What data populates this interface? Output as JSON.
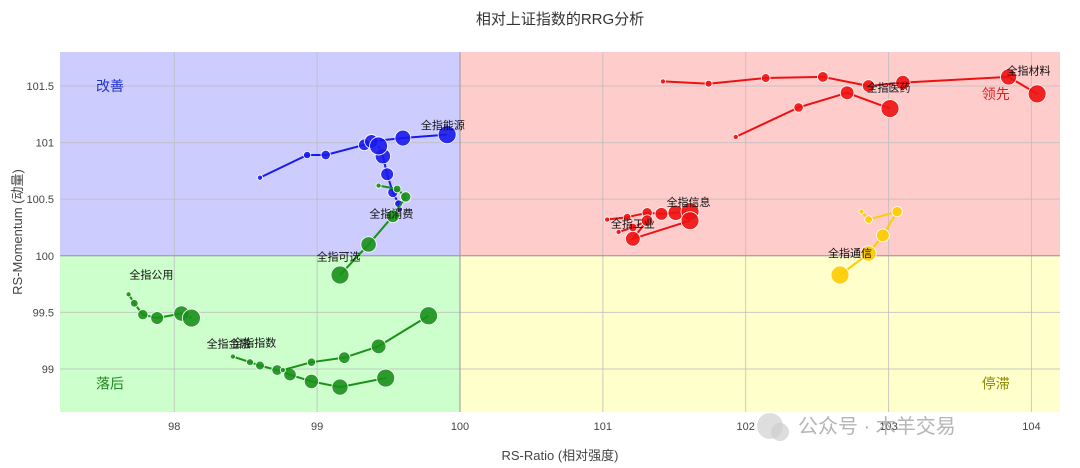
{
  "chart_data": {
    "type": "scatter",
    "title": "相对上证指数的RRG分析",
    "xlabel": "RS-Ratio (相对强度)",
    "ylabel": "RS-Momentum (动量)",
    "xlim": [
      97.2,
      104.2
    ],
    "ylim": [
      98.62,
      101.8
    ],
    "xticks": [
      98,
      99,
      100,
      101,
      102,
      103,
      104
    ],
    "yticks": [
      99,
      99.5,
      100,
      100.5,
      101,
      101.5
    ],
    "xtick_labels": [
      "98",
      "99",
      "100",
      "101",
      "102",
      "103",
      "104"
    ],
    "ytick_labels": [
      "99",
      "99.5",
      "100",
      "100.5",
      "101",
      "101.5"
    ],
    "grid": true,
    "quadrants": [
      {
        "name": "改善",
        "x": [
          97.2,
          100
        ],
        "y": [
          100,
          101.8
        ],
        "fill": "#ccccff",
        "text_color": "#2233cc"
      },
      {
        "name": "领先",
        "x": [
          100,
          104.2
        ],
        "y": [
          100,
          101.8
        ],
        "fill": "#ffcccc",
        "text_color": "#dd2222"
      },
      {
        "name": "落后",
        "x": [
          97.2,
          100
        ],
        "y": [
          98.62,
          100
        ],
        "fill": "#ccffcc",
        "text_color": "#228822"
      },
      {
        "name": "停滞",
        "x": [
          100,
          104.2
        ],
        "y": [
          98.62,
          100
        ],
        "fill": "#ffffcc",
        "text_color": "#888800"
      }
    ],
    "series": [
      {
        "name": "全指能源",
        "color": "#1a1aee",
        "points": [
          [
            98.6,
            100.69
          ],
          [
            98.93,
            100.89
          ],
          [
            99.06,
            100.89
          ],
          [
            99.33,
            100.98
          ],
          [
            99.38,
            101.01
          ],
          [
            99.6,
            101.04
          ],
          [
            99.91,
            101.07
          ]
        ]
      },
      {
        "name": "全指消费",
        "color": "#1a1aee",
        "points": [
          [
            99.58,
            100.41
          ],
          [
            99.57,
            100.46
          ],
          [
            99.53,
            100.56
          ],
          [
            99.49,
            100.72
          ],
          [
            99.46,
            100.88
          ],
          [
            99.43,
            100.97
          ]
        ]
      },
      {
        "name": "全指材料",
        "color": "#ee1111",
        "points": [
          [
            101.42,
            101.54
          ],
          [
            101.74,
            101.52
          ],
          [
            102.14,
            101.57
          ],
          [
            102.54,
            101.58
          ],
          [
            102.86,
            101.5
          ],
          [
            103.1,
            101.53
          ],
          [
            103.84,
            101.58
          ],
          [
            104.04,
            101.43
          ]
        ]
      },
      {
        "name": "全指医药",
        "color": "#ee1111",
        "points": [
          [
            101.93,
            101.05
          ],
          [
            102.37,
            101.31
          ],
          [
            102.71,
            101.44
          ],
          [
            103.01,
            101.3
          ]
        ]
      },
      {
        "name": "全指信息",
        "color": "#ee1111",
        "points": [
          [
            101.03,
            100.32
          ],
          [
            101.17,
            100.34
          ],
          [
            101.31,
            100.38
          ],
          [
            101.41,
            100.37
          ],
          [
            101.51,
            100.38
          ],
          [
            101.61,
            100.39
          ]
        ]
      },
      {
        "name": "全指工业",
        "color": "#ee1111",
        "points": [
          [
            101.11,
            100.21
          ],
          [
            101.21,
            100.25
          ],
          [
            101.31,
            100.31
          ],
          [
            101.21,
            100.15
          ],
          [
            101.61,
            100.31
          ]
        ]
      },
      {
        "name": "全指通信",
        "color": "#ffcc00",
        "points": [
          [
            102.81,
            100.39
          ],
          [
            102.86,
            100.32
          ],
          [
            103.06,
            100.39
          ],
          [
            102.96,
            100.18
          ],
          [
            102.86,
            100.02
          ],
          [
            102.66,
            99.83
          ]
        ]
      },
      {
        "name": "全指可选",
        "color": "#199119",
        "points": [
          [
            99.43,
            100.62
          ],
          [
            99.56,
            100.59
          ],
          [
            99.62,
            100.52
          ],
          [
            99.53,
            100.35
          ],
          [
            99.36,
            100.1
          ],
          [
            99.16,
            99.83
          ]
        ]
      },
      {
        "name": "全指公用",
        "color": "#199119",
        "points": [
          [
            97.68,
            99.66
          ],
          [
            97.72,
            99.58
          ],
          [
            97.78,
            99.48
          ],
          [
            97.88,
            99.45
          ],
          [
            98.05,
            99.49
          ],
          [
            98.12,
            99.45
          ]
        ]
      },
      {
        "name": "全指金融",
        "color": "#199119",
        "points": [
          [
            98.41,
            99.11
          ],
          [
            98.53,
            99.06
          ],
          [
            98.6,
            99.03
          ],
          [
            98.72,
            98.99
          ],
          [
            98.81,
            98.95
          ],
          [
            98.96,
            98.89
          ],
          [
            99.16,
            98.84
          ],
          [
            99.48,
            98.92
          ]
        ]
      },
      {
        "name": "全指指数",
        "color": "#199119",
        "points": [
          [
            98.76,
            98.99
          ],
          [
            98.96,
            99.06
          ],
          [
            99.19,
            99.1
          ],
          [
            99.43,
            99.2
          ],
          [
            99.78,
            99.47
          ]
        ]
      }
    ]
  },
  "watermark": {
    "text": "公众号 · 木羊交易",
    "icon": "wechat-icon"
  }
}
